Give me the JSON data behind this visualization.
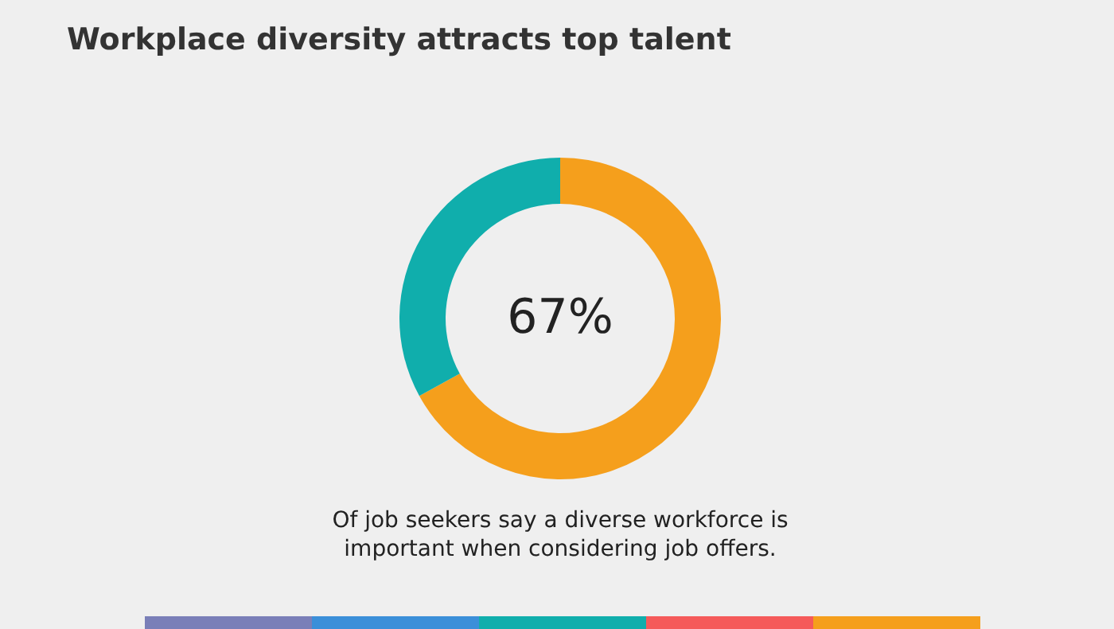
{
  "chart_data": {
    "type": "donut",
    "title": "Workplace diversity attracts top talent",
    "categories": [
      null,
      null
    ],
    "values": [
      67,
      33
    ],
    "colors": [
      "#f59f1c",
      "#10aeac"
    ],
    "annotations": [
      "67%",
      "Of job seekers say a diverse workforce is important when considering job offers."
    ]
  }
}
